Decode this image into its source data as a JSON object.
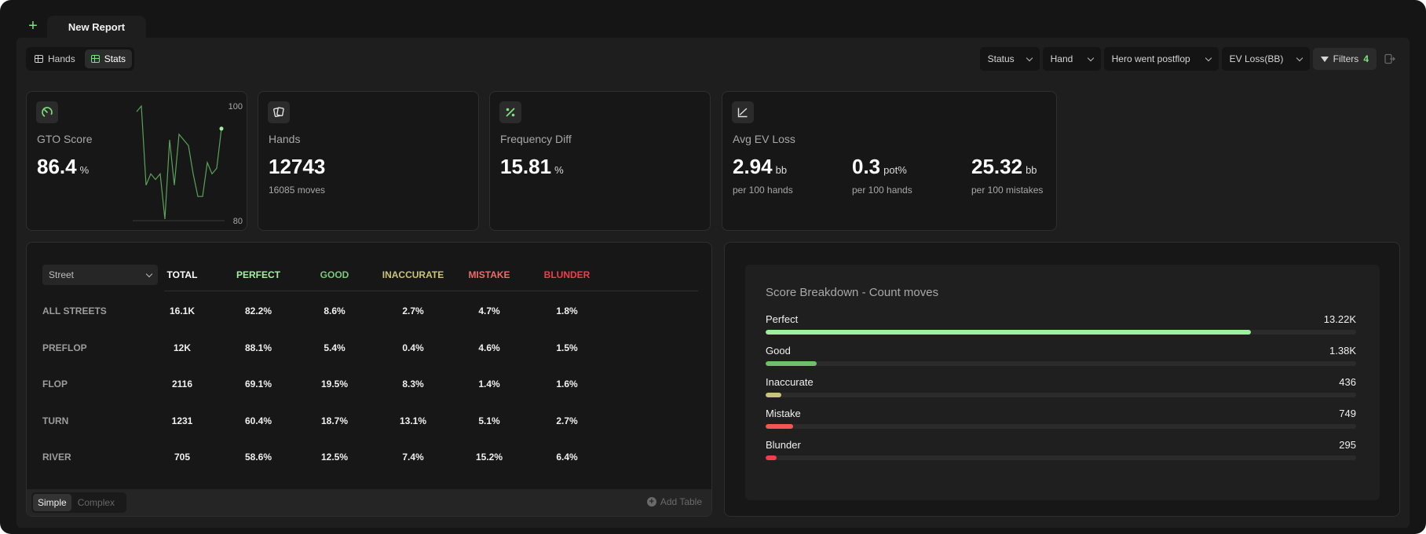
{
  "tabs": {
    "active_label": "New Report"
  },
  "view_toggle": {
    "hands_label": "Hands",
    "stats_label": "Stats"
  },
  "filters": {
    "status": "Status",
    "hand": "Hand",
    "hero": "Hero went postflop",
    "ev": "EV Loss(BB)",
    "filters_label": "Filters",
    "filters_count": "4"
  },
  "cards": {
    "gto": {
      "title": "GTO Score",
      "value": "86.4",
      "unit": "%",
      "chart_max": "100",
      "chart_min": "80"
    },
    "hands": {
      "title": "Hands",
      "value": "12743",
      "sub": "16085 moves"
    },
    "freq": {
      "title": "Frequency Diff",
      "value": "15.81",
      "unit": "%"
    },
    "ev": {
      "title": "Avg EV Loss",
      "cols": [
        {
          "value": "2.94",
          "unit": "bb",
          "sub": "per 100 hands"
        },
        {
          "value": "0.3",
          "unit": "pot%",
          "sub": "per 100 hands"
        },
        {
          "value": "25.32",
          "unit": "bb",
          "sub": "per 100 mistakes"
        }
      ]
    }
  },
  "chart_data": {
    "type": "line",
    "ylim": [
      80,
      100
    ],
    "values": [
      99,
      100,
      86,
      88,
      87,
      88,
      80,
      94,
      86,
      95,
      94,
      93,
      88,
      84,
      84,
      90,
      88,
      89,
      96
    ]
  },
  "table": {
    "street_select": "Street",
    "headers": [
      {
        "label": "TOTAL",
        "color": "#ffffff"
      },
      {
        "label": "PERFECT",
        "color": "#a3f0a3"
      },
      {
        "label": "GOOD",
        "color": "#7cc87c"
      },
      {
        "label": "INACCURATE",
        "color": "#c9c47a"
      },
      {
        "label": "MISTAKE",
        "color": "#f06a6a"
      },
      {
        "label": "BLUNDER",
        "color": "#f23d4d"
      }
    ],
    "rows": [
      {
        "label": "ALL STREETS",
        "cells": [
          "16.1K",
          "82.2%",
          "8.6%",
          "2.7%",
          "4.7%",
          "1.8%"
        ]
      },
      {
        "label": "PREFLOP",
        "cells": [
          "12K",
          "88.1%",
          "5.4%",
          "0.4%",
          "4.6%",
          "1.5%"
        ]
      },
      {
        "label": "FLOP",
        "cells": [
          "2116",
          "69.1%",
          "19.5%",
          "8.3%",
          "1.4%",
          "1.6%"
        ]
      },
      {
        "label": "TURN",
        "cells": [
          "1231",
          "60.4%",
          "18.7%",
          "13.1%",
          "5.1%",
          "2.7%"
        ]
      },
      {
        "label": "RIVER",
        "cells": [
          "705",
          "58.6%",
          "12.5%",
          "7.4%",
          "15.2%",
          "6.4%"
        ]
      }
    ],
    "mode_simple": "Simple",
    "mode_complex": "Complex",
    "add_table": "Add Table"
  },
  "breakdown": {
    "title": "Score Breakdown - Count moves",
    "items": [
      {
        "label": "Perfect",
        "value": "13.22K",
        "fraction": 0.822,
        "color": "#9ef09e"
      },
      {
        "label": "Good",
        "value": "1.38K",
        "fraction": 0.086,
        "color": "#6fbf6f"
      },
      {
        "label": "Inaccurate",
        "value": "436",
        "fraction": 0.027,
        "color": "#c9c47a"
      },
      {
        "label": "Mistake",
        "value": "749",
        "fraction": 0.047,
        "color": "#f25757"
      },
      {
        "label": "Blunder",
        "value": "295",
        "fraction": 0.018,
        "color": "#f23d4d"
      }
    ]
  }
}
